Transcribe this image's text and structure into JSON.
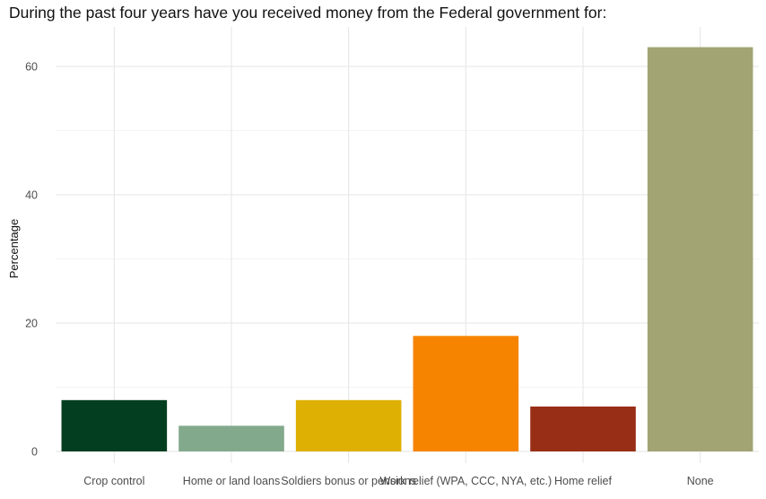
{
  "chart_data": {
    "type": "bar",
    "title": "During the past four years have you received money from the Federal government for:",
    "xlabel": "",
    "ylabel": "Percentage",
    "categories": [
      "Crop control",
      "Home or land loans",
      "Soldiers bonus or pensions",
      "Work relief (WPA, CCC, NYA, etc.)",
      "Home relief",
      "None"
    ],
    "values": [
      8,
      4,
      8,
      18,
      7,
      63
    ],
    "colors": [
      "#023e1f",
      "#83a98c",
      "#deb003",
      "#f78401",
      "#982e16",
      "#a2a474"
    ],
    "ylim": [
      0,
      66
    ],
    "yticks": [
      0,
      20,
      40,
      60
    ],
    "grid": true,
    "legend": "none"
  }
}
